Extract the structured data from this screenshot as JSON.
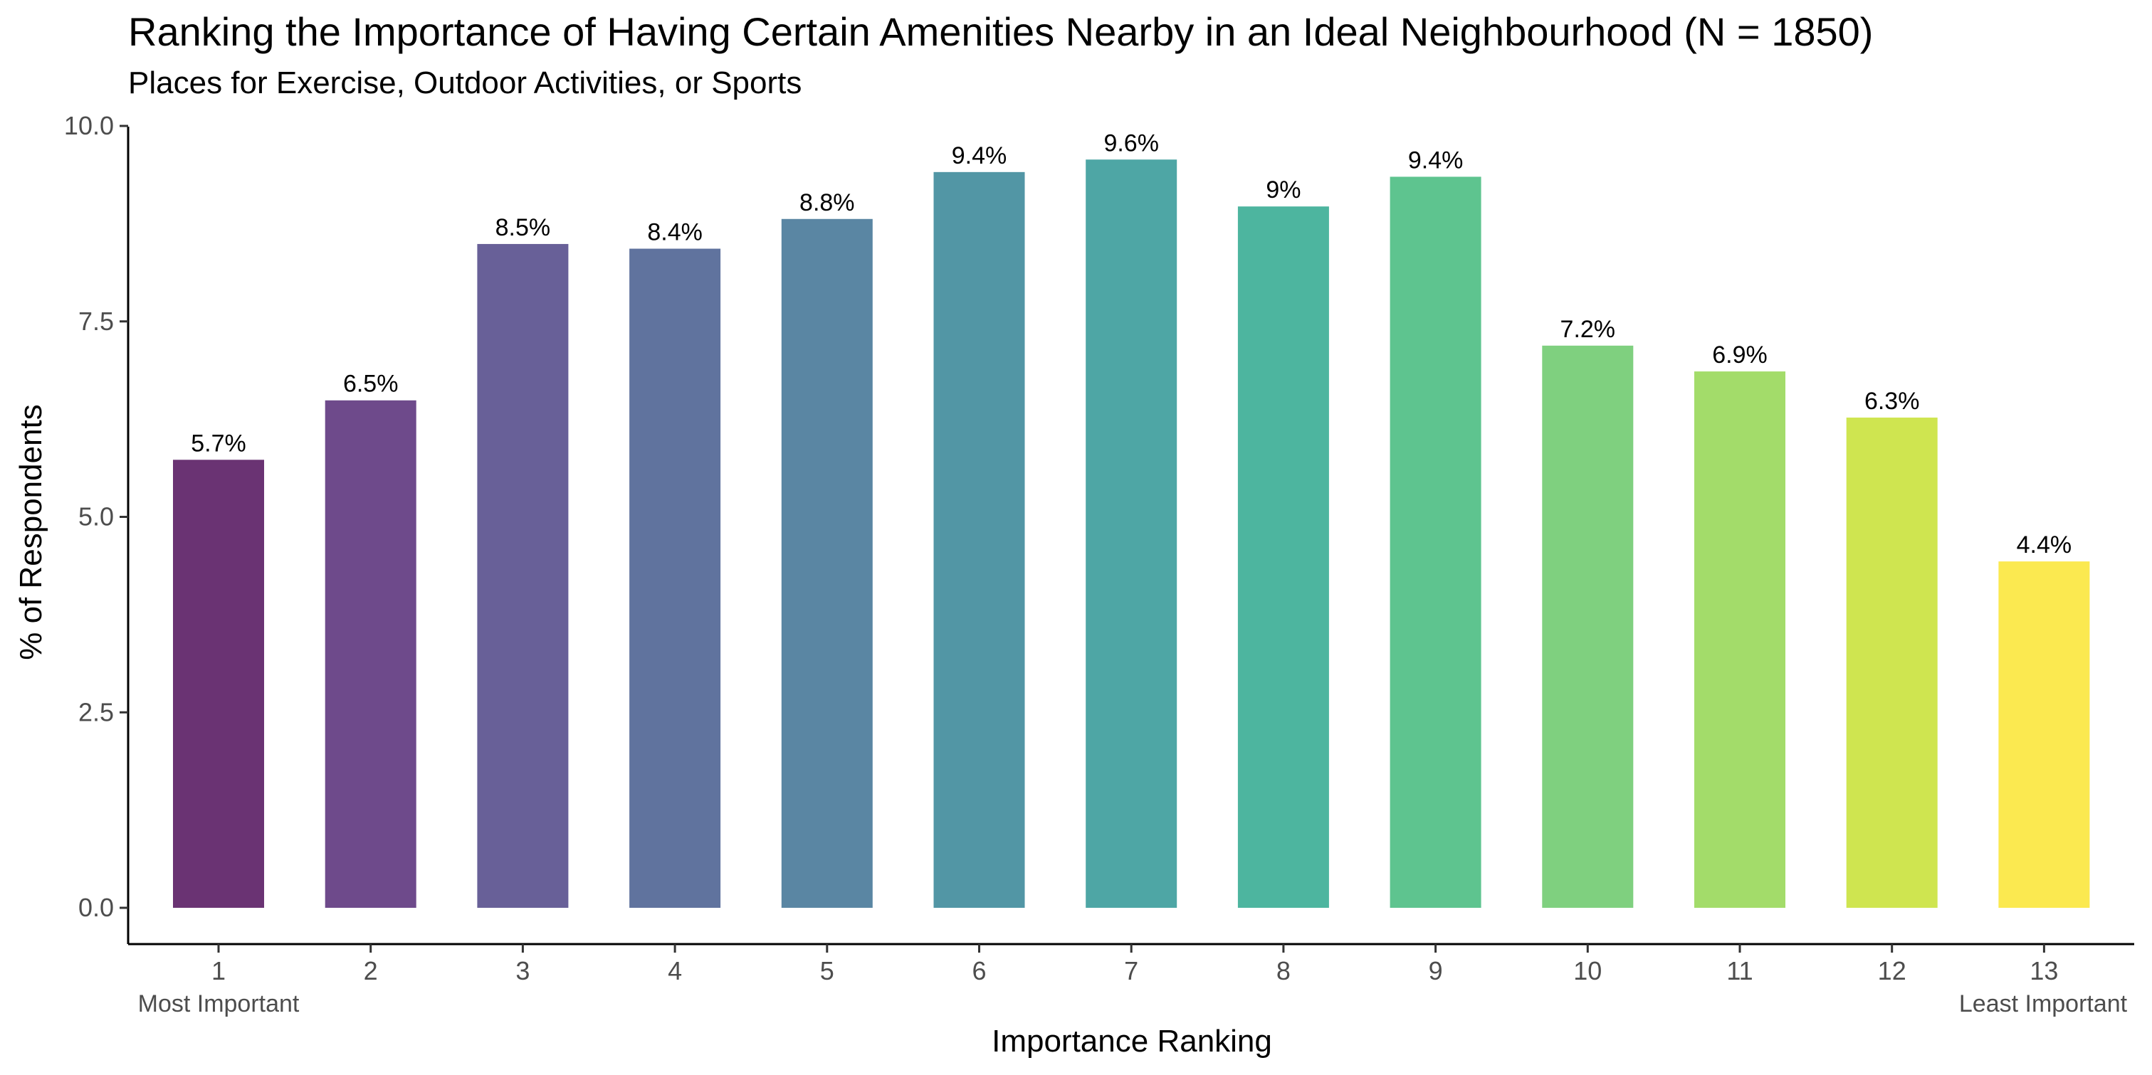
{
  "chart_data": {
    "type": "bar",
    "title": "Ranking the Importance of Having Certain Amenities Nearby in an Ideal Neighbourhood (N = 1850)",
    "subtitle": "Places for Exercise, Outdoor Activities, or Sports",
    "xlabel": "Importance Ranking",
    "ylabel": "% of Respondents",
    "categories": [
      "1",
      "2",
      "3",
      "4",
      "5",
      "6",
      "7",
      "8",
      "9",
      "10",
      "11",
      "12",
      "13"
    ],
    "values": [
      5.73,
      6.49,
      8.49,
      8.43,
      8.81,
      9.41,
      9.57,
      8.97,
      9.35,
      7.19,
      6.86,
      6.27,
      4.43
    ],
    "value_labels": [
      "5.7%",
      "6.5%",
      "8.5%",
      "8.4%",
      "8.8%",
      "9.4%",
      "9.6%",
      "9%",
      "9.4%",
      "7.2%",
      "6.9%",
      "6.3%",
      "4.4%"
    ],
    "colors": [
      "#6a3373",
      "#6e4a8b",
      "#686098",
      "#60739e",
      "#5a86a3",
      "#5296a5",
      "#4ea6a5",
      "#4db59f",
      "#5ec48f",
      "#7fd07f",
      "#a3dc6a",
      "#cfe550",
      "#fbe950"
    ],
    "ylim": [
      0,
      10
    ],
    "yticks": [
      0,
      2.5,
      5,
      7.5,
      10
    ],
    "ytick_labels": [
      "0.0",
      "2.5",
      "5.0",
      "7.5",
      "10.0"
    ],
    "x_end_labels": {
      "first": "Most Important",
      "last": "Least Important"
    },
    "grid": false,
    "legend": "none"
  }
}
